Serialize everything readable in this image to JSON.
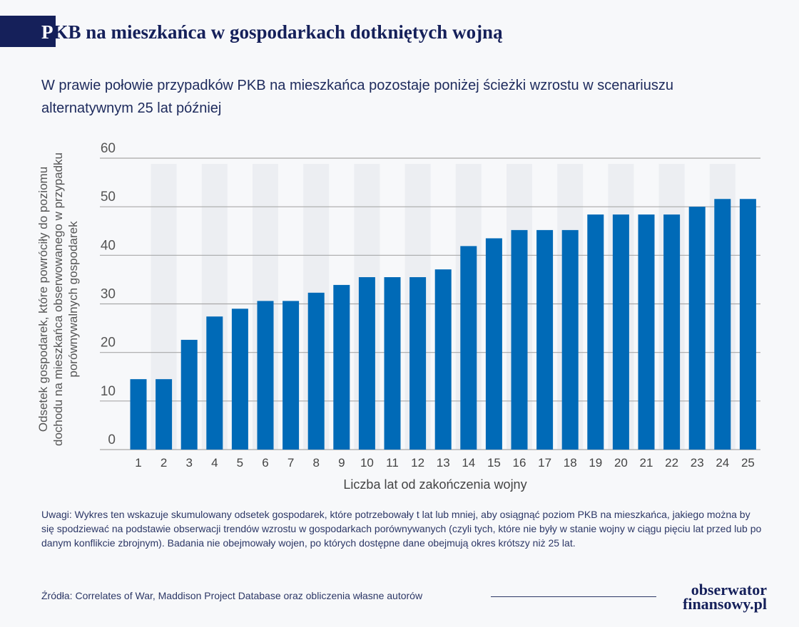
{
  "header": {
    "title_first": "P",
    "title_rest": "KB na mieszkańca w gospodarkach dotkniętych wojną",
    "subtitle": "W prawie połowie przypadków PKB na mieszkańca pozostaje poniżej ścieżki wzrostu w scenariuszu alternatywnym 25 lat później"
  },
  "chart_data": {
    "type": "bar",
    "categories": [
      "1",
      "2",
      "3",
      "4",
      "5",
      "6",
      "7",
      "8",
      "9",
      "10",
      "11",
      "12",
      "13",
      "14",
      "15",
      "16",
      "17",
      "18",
      "19",
      "20",
      "21",
      "22",
      "23",
      "24",
      "25"
    ],
    "values": [
      14.5,
      14.5,
      22.6,
      27.4,
      29.0,
      30.6,
      30.6,
      32.3,
      33.9,
      35.5,
      35.5,
      35.5,
      37.1,
      41.9,
      43.5,
      45.2,
      45.2,
      45.2,
      48.4,
      48.4,
      48.4,
      48.4,
      50.0,
      51.6,
      51.6
    ],
    "xlabel": "Liczba lat od zakończenia wojny",
    "ylabel": "Odsetek gospodarek, które powróciły do poziomu dochodu na mieszkańca obserwowanego w przypadku porównywalnych gospodarek",
    "ylim": [
      0,
      60
    ],
    "yticks": [
      0,
      10,
      20,
      30,
      40,
      50,
      60
    ],
    "grid": true,
    "bar_color": "#006ab7"
  },
  "note": "Uwagi: Wykres ten wskazuje skumulowany odsetek gospodarek, które potrzebowały t lat lub mniej, aby osiągnąć poziom PKB na mieszkańca, jakiego można by się spodziewać na podstawie obserwacji trendów wzrostu w gospodarkach porównywanych (czyli tych, które nie były w stanie wojny w ciągu pięciu lat przed lub po danym konflikcie zbrojnym). Badania nie obejmowały wojen, po których dostępne dane obejmują okres krótszy niż 25 lat.",
  "source": "Źródła: Correlates of War, Maddison Project Database oraz obliczenia własne autorów",
  "logo": {
    "line1": "obserwator",
    "line2": "finansowy.pl"
  }
}
